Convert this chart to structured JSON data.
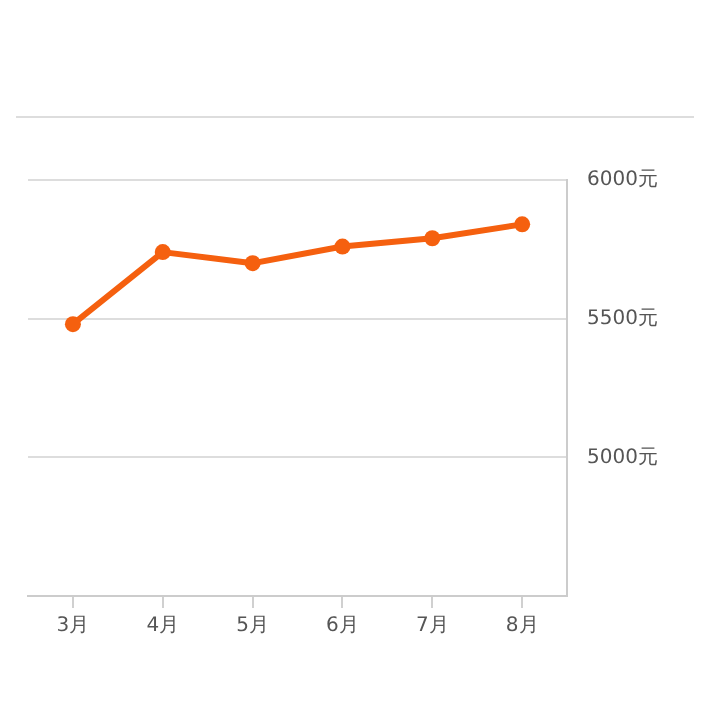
{
  "chart_data": {
    "type": "line",
    "categories": [
      "3月",
      "4月",
      "5月",
      "6月",
      "7月",
      "8月"
    ],
    "series": [
      {
        "color": "#f5600f",
        "values": [
          5480,
          5740,
          5700,
          5760,
          5790,
          5840
        ]
      }
    ],
    "ylim": [
      4500,
      6000
    ],
    "yticks": [
      {
        "value": 5000,
        "label": "5000元"
      },
      {
        "value": 5500,
        "label": "5500元"
      },
      {
        "value": 6000,
        "label": "6000元"
      }
    ],
    "grid": "y",
    "marker": "circle",
    "line_style": "solid",
    "legend": false
  }
}
